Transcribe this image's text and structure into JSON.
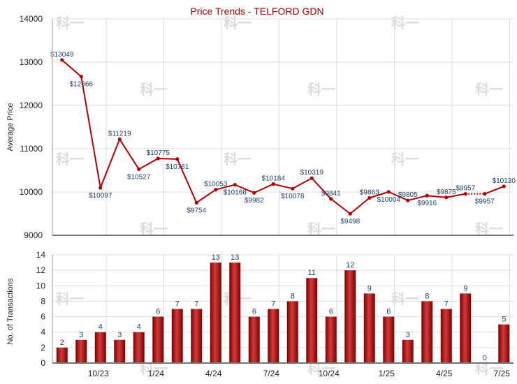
{
  "chart_data": [
    {
      "type": "line",
      "title": "Price Trends - TELFORD GDN",
      "ylabel": "Average Price",
      "ylim": [
        9000,
        14000
      ],
      "yticks": [
        9000,
        10000,
        11000,
        12000,
        13000,
        14000
      ],
      "grid": true,
      "series": [
        {
          "values": [
            13049,
            12666,
            10097,
            11219,
            10527,
            10775,
            10761,
            9754,
            10053,
            10168,
            9982,
            10184,
            10078,
            10319,
            9841,
            9498,
            9863,
            10004,
            9805,
            9916,
            9875,
            9957,
            9957,
            10130
          ],
          "labels": [
            "$13049",
            "$12666",
            "$10097",
            "$11219",
            "$10527",
            "$10775",
            "$10761",
            "$9754",
            "$10053",
            "$10168",
            "$9982",
            "$10184",
            "$10078",
            "$10319",
            "$9841",
            "$9498",
            "$9863",
            "$10004",
            "$9805",
            "$9916",
            "$9875",
            "$9957",
            "$9957",
            "$10130"
          ],
          "label_above": [
            true,
            false,
            false,
            true,
            false,
            true,
            false,
            false,
            true,
            false,
            false,
            true,
            false,
            true,
            true,
            false,
            true,
            false,
            true,
            false,
            true,
            true,
            false,
            true
          ],
          "dotted_last_segment": true
        }
      ],
      "color": "#b30000"
    },
    {
      "type": "bar",
      "ylabel": "No. of Transactions",
      "ylim": [
        0,
        14
      ],
      "yticks": [
        0,
        2,
        4,
        6,
        8,
        10,
        12,
        14
      ],
      "grid": true,
      "values": [
        2,
        3,
        4,
        3,
        4,
        6,
        7,
        7,
        13,
        13,
        6,
        7,
        8,
        11,
        6,
        12,
        9,
        6,
        3,
        8,
        7,
        9,
        0,
        5
      ],
      "x_tick_labels": [
        "10/23",
        "1/24",
        "4/24",
        "7/24",
        "10/24",
        "1/25",
        "4/25",
        "7/25"
      ],
      "color": "#b30000"
    }
  ],
  "watermark": "科一"
}
